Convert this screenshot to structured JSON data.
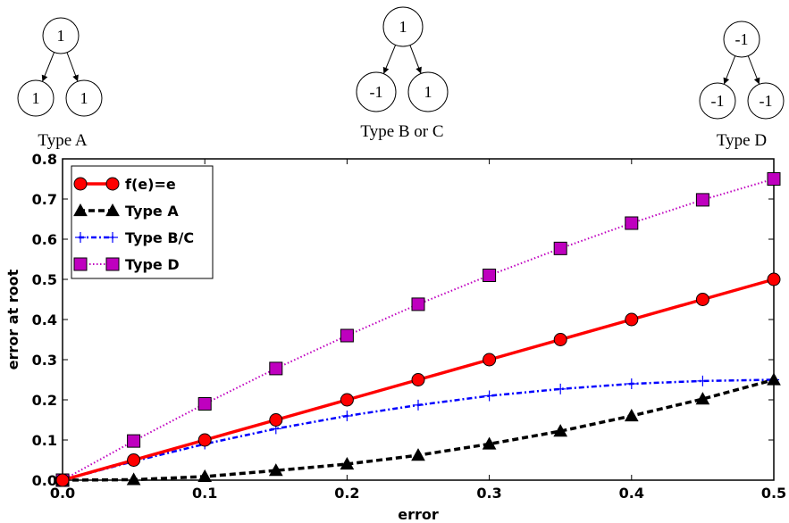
{
  "trees": [
    {
      "caption": "Type A",
      "root": "1",
      "left": "1",
      "right": "1"
    },
    {
      "caption": "Type B or C",
      "root": "1",
      "left": "-1",
      "right": "1"
    },
    {
      "caption": "Type D",
      "root": "-1",
      "left": "-1",
      "right": "-1"
    }
  ],
  "chart_data": {
    "type": "line",
    "xlabel": "error",
    "ylabel": "error at root",
    "xlim": [
      0.0,
      0.5
    ],
    "ylim": [
      0.0,
      0.8
    ],
    "xticks": [
      0.0,
      0.1,
      0.2,
      0.3,
      0.4,
      0.5
    ],
    "xtick_labels": [
      "0.0",
      "0.1",
      "0.2",
      "0.3",
      "0.4",
      "0.5"
    ],
    "yticks": [
      0.0,
      0.1,
      0.2,
      0.3,
      0.4,
      0.5,
      0.6,
      0.7,
      0.8
    ],
    "ytick_labels": [
      "0.0",
      "0.1",
      "0.2",
      "0.3",
      "0.4",
      "0.5",
      "0.6",
      "0.7",
      "0.8"
    ],
    "grid": false,
    "legend_position": "upper-left",
    "x": [
      0.0,
      0.05,
      0.1,
      0.15,
      0.2,
      0.25,
      0.3,
      0.35,
      0.4,
      0.45,
      0.5
    ],
    "series": [
      {
        "name": "f(e)=e",
        "color": "#ff0000",
        "marker": "circle",
        "line": "solid",
        "values": [
          0.0,
          0.05,
          0.1,
          0.15,
          0.2,
          0.25,
          0.3,
          0.35,
          0.4,
          0.45,
          0.5
        ]
      },
      {
        "name": "Type A",
        "color": "#000000",
        "marker": "triangle",
        "line": "dashed",
        "values": [
          0.0,
          0.0012,
          0.009,
          0.024,
          0.04,
          0.062,
          0.09,
          0.122,
          0.16,
          0.202,
          0.25
        ]
      },
      {
        "name": "Type B/C",
        "color": "#0000ff",
        "marker": "plus",
        "line": "dashdot",
        "values": [
          0.0,
          0.047,
          0.09,
          0.128,
          0.16,
          0.187,
          0.21,
          0.227,
          0.24,
          0.247,
          0.25
        ]
      },
      {
        "name": "Type D",
        "color": "#bf00bf",
        "marker": "square",
        "line": "dotted",
        "values": [
          0.0,
          0.0975,
          0.19,
          0.278,
          0.36,
          0.438,
          0.51,
          0.577,
          0.64,
          0.698,
          0.75
        ]
      }
    ]
  }
}
